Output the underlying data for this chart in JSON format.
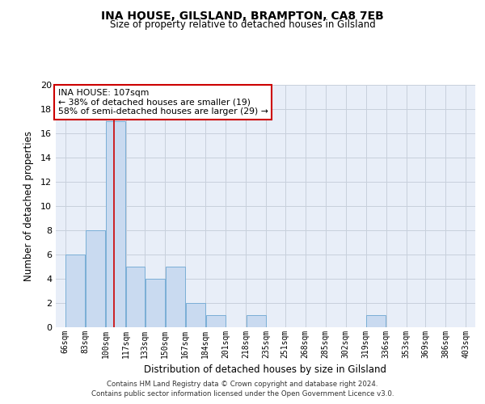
{
  "title": "INA HOUSE, GILSLAND, BRAMPTON, CA8 7EB",
  "subtitle": "Size of property relative to detached houses in Gilsland",
  "xlabel": "Distribution of detached houses by size in Gilsland",
  "ylabel": "Number of detached properties",
  "bar_edges": [
    66,
    83,
    100,
    117,
    133,
    150,
    167,
    184,
    201,
    218,
    235,
    251,
    268,
    285,
    302,
    319,
    336,
    353,
    369,
    386,
    403
  ],
  "bar_heights": [
    6,
    8,
    17,
    5,
    4,
    5,
    2,
    1,
    0,
    1,
    0,
    0,
    0,
    0,
    0,
    1,
    0,
    0,
    0,
    0
  ],
  "bar_color": "#c9daf0",
  "bar_edge_color": "#7aaed6",
  "grid_color": "#c8d0dc",
  "bg_color": "#e8eef8",
  "vline_x": 107,
  "vline_color": "#cc0000",
  "annotation_text": "INA HOUSE: 107sqm\n← 38% of detached houses are smaller (19)\n58% of semi-detached houses are larger (29) →",
  "annotation_box_facecolor": "#ffffff",
  "annotation_box_edgecolor": "#cc0000",
  "footer_line1": "Contains HM Land Registry data © Crown copyright and database right 2024.",
  "footer_line2": "Contains public sector information licensed under the Open Government Licence v3.0.",
  "ylim": [
    0,
    20
  ],
  "yticks": [
    0,
    2,
    4,
    6,
    8,
    10,
    12,
    14,
    16,
    18,
    20
  ],
  "xtick_labels": [
    "66sqm",
    "83sqm",
    "100sqm",
    "117sqm",
    "133sqm",
    "150sqm",
    "167sqm",
    "184sqm",
    "201sqm",
    "218sqm",
    "235sqm",
    "251sqm",
    "268sqm",
    "285sqm",
    "302sqm",
    "319sqm",
    "336sqm",
    "353sqm",
    "369sqm",
    "386sqm",
    "403sqm"
  ]
}
